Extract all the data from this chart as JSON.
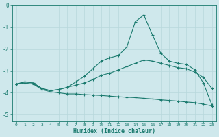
{
  "xlabel": "Humidex (Indice chaleur)",
  "bg_color": "#cfe8ec",
  "line_color": "#1a7a6e",
  "grid_color": "#b8d8dc",
  "xlim": [
    -0.5,
    23.5
  ],
  "ylim": [
    -5.3,
    -0.2
  ],
  "yticks": [
    0,
    -1,
    -2,
    -3,
    -4,
    -5
  ],
  "xticks": [
    0,
    1,
    2,
    3,
    4,
    5,
    6,
    7,
    8,
    9,
    10,
    11,
    12,
    13,
    14,
    15,
    16,
    17,
    18,
    19,
    20,
    21,
    22,
    23
  ],
  "line1_x": [
    0,
    1,
    2,
    3,
    4,
    5,
    6,
    7,
    8,
    9,
    10,
    11,
    12,
    13,
    14,
    15,
    16,
    17,
    18,
    19,
    20,
    21,
    22,
    23
  ],
  "line1_y": [
    -3.6,
    -3.5,
    -3.55,
    -3.8,
    -3.9,
    -3.85,
    -3.75,
    -3.5,
    -3.25,
    -2.9,
    -2.55,
    -2.4,
    -2.3,
    -1.9,
    -0.75,
    -0.45,
    -1.35,
    -2.2,
    -2.55,
    -2.65,
    -2.7,
    -2.95,
    -3.55,
    -4.55
  ],
  "line2_x": [
    0,
    1,
    2,
    3,
    4,
    5,
    6,
    7,
    8,
    9,
    10,
    11,
    12,
    13,
    14,
    15,
    16,
    17,
    18,
    19,
    20,
    21,
    22,
    23
  ],
  "line2_y": [
    -3.6,
    -3.5,
    -3.55,
    -3.8,
    -3.9,
    -3.85,
    -3.75,
    -3.65,
    -3.55,
    -3.4,
    -3.2,
    -3.1,
    -2.95,
    -2.8,
    -2.65,
    -2.5,
    -2.55,
    -2.65,
    -2.75,
    -2.85,
    -2.9,
    -3.05,
    -3.3,
    -3.8
  ],
  "line3_x": [
    0,
    1,
    2,
    3,
    4,
    5,
    6,
    7,
    8,
    9,
    10,
    11,
    12,
    13,
    14,
    15,
    16,
    17,
    18,
    19,
    20,
    21,
    22,
    23
  ],
  "line3_y": [
    -3.6,
    -3.55,
    -3.6,
    -3.85,
    -3.95,
    -4.0,
    -4.05,
    -4.05,
    -4.08,
    -4.1,
    -4.12,
    -4.15,
    -4.18,
    -4.2,
    -4.22,
    -4.25,
    -4.28,
    -4.32,
    -4.35,
    -4.38,
    -4.42,
    -4.45,
    -4.52,
    -4.6
  ]
}
